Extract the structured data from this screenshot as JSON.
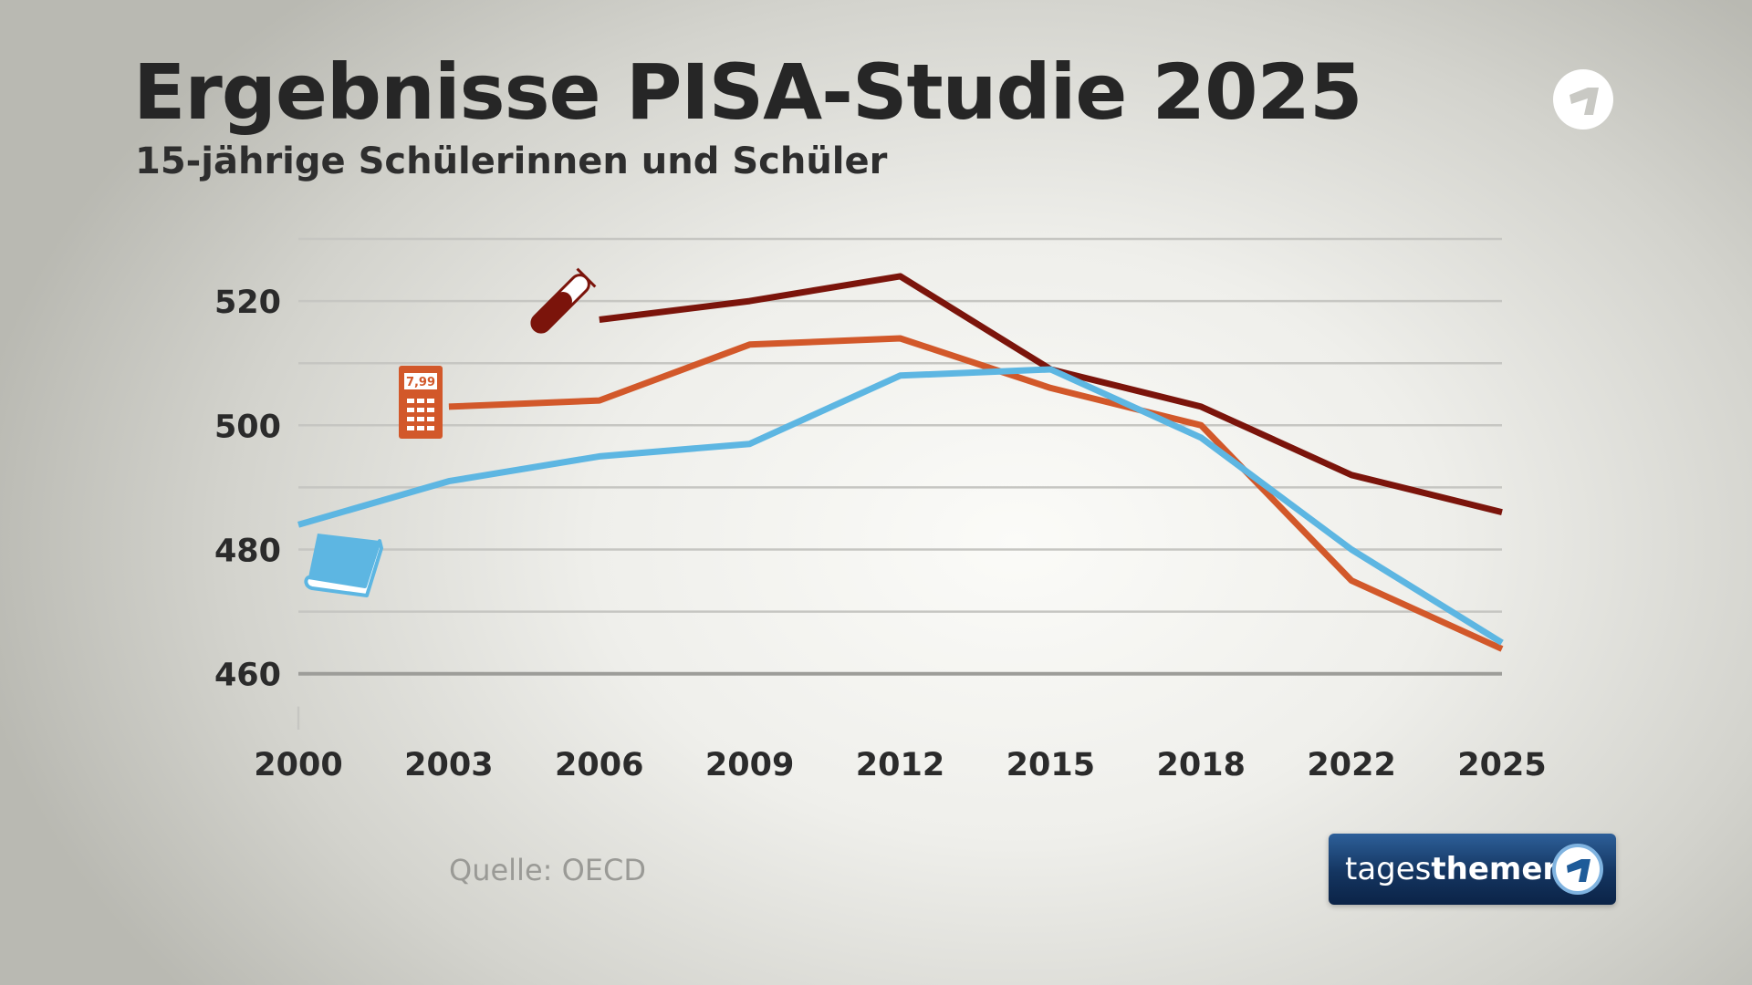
{
  "title": "Ergebnisse PISA-Studie 2025",
  "subtitle": "15-jährige Schülerinnen und Schüler",
  "source": "Quelle: OECD",
  "badge": {
    "text_regular": "tages",
    "text_bold": "themen",
    "logo": "ard-one-logo"
  },
  "calculator_display": "7,99",
  "colors": {
    "science": "#7b140b",
    "math": "#d2582a",
    "reading": "#5db6e2",
    "grid": "#c6c6c2",
    "axis": "#9d9d99"
  },
  "chart_data": {
    "type": "line",
    "title": "Ergebnisse PISA-Studie 2025",
    "subtitle": "15-jährige Schülerinnen und Schüler",
    "xlabel": "",
    "ylabel": "",
    "categories": [
      "2000",
      "2003",
      "2006",
      "2009",
      "2012",
      "2015",
      "2018",
      "2022",
      "2025"
    ],
    "y_ticks": [
      460,
      480,
      500,
      520
    ],
    "ylim": [
      451,
      530
    ],
    "grid": true,
    "series": [
      {
        "icon": "test-tube-icon",
        "color": "#7b140b",
        "values": [
          null,
          null,
          517,
          520,
          524,
          509,
          503,
          492,
          486
        ]
      },
      {
        "icon": "calculator-icon",
        "color": "#d2582a",
        "values": [
          null,
          503,
          504,
          513,
          514,
          506,
          500,
          475,
          464
        ]
      },
      {
        "icon": "book-icon",
        "color": "#5db6e2",
        "values": [
          484,
          491,
          495,
          497,
          508,
          509,
          498,
          480,
          465
        ]
      }
    ]
  }
}
